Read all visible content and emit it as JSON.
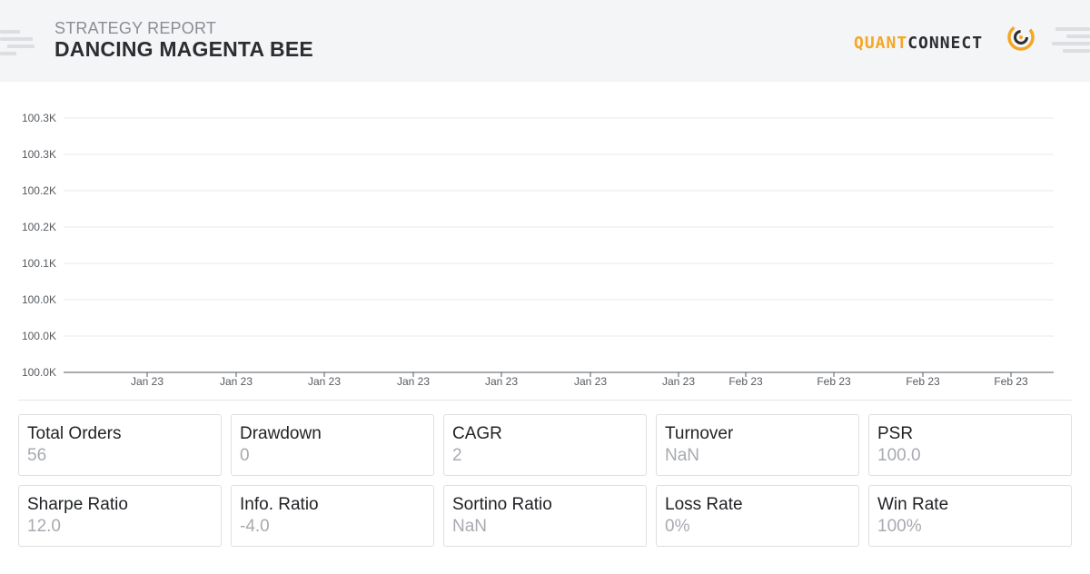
{
  "header": {
    "label": "STRATEGY REPORT",
    "title": "DANCING MAGENTA BEE",
    "logo_part1": "QUANT",
    "logo_part2": "CONNECT"
  },
  "colors": {
    "accent": "#f5a623",
    "text_dark": "#2b2d31",
    "muted": "#a7aaaf"
  },
  "chart_data": {
    "type": "line",
    "title": "",
    "xlabel": "",
    "ylabel": "",
    "y_tick_labels": [
      "100.3K",
      "100.3K",
      "100.2K",
      "100.2K",
      "100.1K",
      "100.0K",
      "100.0K",
      "100.0K"
    ],
    "x_tick_labels": [
      "Jan 23",
      "Jan 23",
      "Jan 23",
      "Jan 23",
      "Jan 23",
      "Jan 23",
      "Jan 23",
      "Feb 23",
      "Feb 23",
      "Feb 23",
      "Feb 23"
    ],
    "series": [],
    "grid": true,
    "legend": "none"
  },
  "stats": [
    {
      "label": "Total Orders",
      "value": "56"
    },
    {
      "label": "Drawdown",
      "value": "0"
    },
    {
      "label": "CAGR",
      "value": "2"
    },
    {
      "label": "Turnover",
      "value": "NaN"
    },
    {
      "label": "PSR",
      "value": "100.0"
    },
    {
      "label": "Sharpe Ratio",
      "value": "12.0"
    },
    {
      "label": "Info. Ratio",
      "value": "-4.0"
    },
    {
      "label": "Sortino Ratio",
      "value": "NaN"
    },
    {
      "label": "Loss Rate",
      "value": "0%"
    },
    {
      "label": "Win Rate",
      "value": "100%"
    }
  ]
}
